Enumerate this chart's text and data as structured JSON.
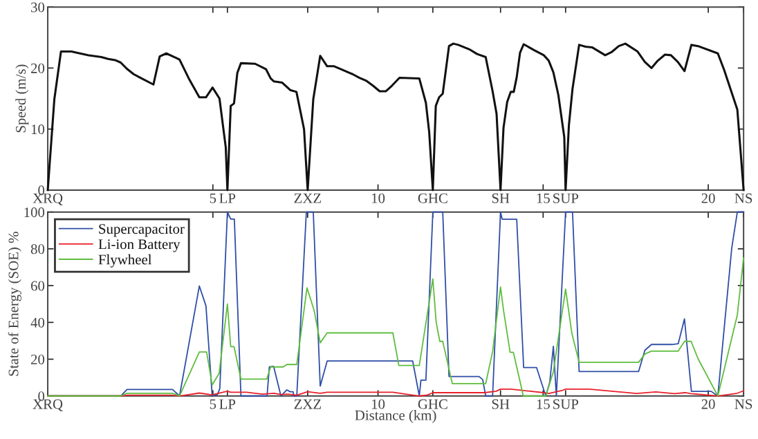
{
  "chart_data": [
    {
      "type": "line",
      "ylabel": "Speed (m/s)",
      "xlim": [
        0,
        21.07
      ],
      "ylim": [
        0,
        30
      ],
      "xticks": [
        {
          "value": 0,
          "label": "XRQ"
        },
        5,
        {
          "value": 5.44,
          "label": "LP"
        },
        {
          "value": 7.87,
          "label": "ZXZ"
        },
        10,
        {
          "value": 11.66,
          "label": "GHC"
        },
        {
          "value": 13.71,
          "label": "SH"
        },
        15,
        {
          "value": 15.68,
          "label": "SUP"
        },
        20,
        {
          "value": 21.07,
          "label": "NS"
        }
      ],
      "yticks": [
        0,
        10,
        20,
        30
      ],
      "grid": false,
      "legend": false,
      "marker": "none",
      "line_style": "solid",
      "series": [
        {
          "color": "#111111",
          "x": [
            0,
            0.2,
            0.4,
            0.72,
            0.88,
            1.24,
            1.62,
            1.83,
            2.04,
            2.21,
            2.39,
            2.6,
            2.81,
            3.2,
            3.39,
            3.59,
            3.99,
            4.27,
            4.59,
            4.79,
            4.99,
            5.2,
            5.39,
            5.44,
            5.54,
            5.64,
            5.74,
            5.85,
            6.28,
            6.61,
            6.75,
            6.85,
            7.1,
            7.34,
            7.53,
            7.76,
            7.87,
            8.04,
            8.25,
            8.46,
            8.67,
            8.88,
            9.23,
            9.44,
            9.65,
            9.85,
            10.05,
            10.24,
            10.42,
            10.65,
            11.25,
            11.45,
            11.55,
            11.66,
            11.75,
            11.85,
            11.96,
            12.15,
            12.28,
            12.43,
            12.79,
            13.0,
            13.26,
            13.47,
            13.59,
            13.71,
            13.8,
            13.91,
            14.02,
            14.11,
            14.2,
            14.3,
            14.41,
            14.74,
            15.02,
            15.17,
            15.31,
            15.46,
            15.64,
            15.68,
            15.78,
            15.89,
            16.09,
            16.28,
            16.48,
            16.88,
            17.07,
            17.29,
            17.49,
            17.86,
            18.08,
            18.28,
            18.47,
            18.69,
            18.87,
            19.08,
            19.28,
            19.49,
            19.69,
            20.29,
            20.48,
            20.88,
            21.07
          ],
          "values": [
            0,
            14.9,
            22.7,
            22.7,
            22.5,
            22.1,
            21.8,
            21.5,
            21.3,
            20.9,
            19.9,
            19.0,
            18.4,
            17.3,
            21.9,
            22.4,
            21.4,
            18.3,
            15.2,
            15.2,
            16.8,
            15.0,
            7.0,
            0,
            13.8,
            14.2,
            19.2,
            20.8,
            20.7,
            19.8,
            18.3,
            17.8,
            17.6,
            16.4,
            16.1,
            10.0,
            0,
            14.9,
            22.0,
            20.3,
            20.3,
            19.8,
            19.0,
            18.4,
            17.9,
            17.1,
            16.2,
            16.2,
            17.1,
            18.4,
            18.3,
            14.3,
            9.5,
            0,
            13.8,
            15.2,
            15.8,
            23.6,
            24.0,
            23.8,
            23.0,
            22.3,
            21.8,
            16.2,
            12.5,
            0,
            10.2,
            14.4,
            16.1,
            16.1,
            18.5,
            22.5,
            23.9,
            22.9,
            22.1,
            21.2,
            19.3,
            15.6,
            8.7,
            0,
            10.6,
            16.6,
            23.8,
            23.5,
            23.4,
            22.1,
            22.6,
            23.6,
            24.0,
            22.7,
            21.0,
            20.0,
            21.2,
            22.2,
            22.1,
            21.0,
            19.5,
            23.8,
            23.6,
            22.4,
            19.7,
            13.2,
            0
          ]
        }
      ]
    },
    {
      "type": "line",
      "xlabel": "Distance (km)",
      "ylabel": "State of Energy (SOE) %",
      "xlim": [
        0,
        21.07
      ],
      "ylim": [
        0,
        100
      ],
      "xticks": [
        {
          "value": 0,
          "label": "XRQ"
        },
        5,
        {
          "value": 5.44,
          "label": "LP"
        },
        {
          "value": 7.87,
          "label": "ZXZ"
        },
        10,
        {
          "value": 11.66,
          "label": "GHC"
        },
        {
          "value": 13.71,
          "label": "SH"
        },
        15,
        {
          "value": 15.68,
          "label": "SUP"
        },
        20,
        {
          "value": 21.07,
          "label": "NS"
        }
      ],
      "yticks": [
        0,
        20,
        40,
        60,
        80,
        100
      ],
      "grid": false,
      "legend": "top left",
      "marker": "none",
      "line_style": "solid",
      "series": [
        {
          "name": "Supercapacitor",
          "color": "#2f4ea6",
          "x": [
            0,
            2.21,
            2.4,
            3.78,
            3.99,
            4.59,
            4.79,
            4.98,
            5.14,
            5.21,
            5.44,
            5.54,
            5.65,
            5.85,
            6.64,
            6.71,
            6.84,
            7.06,
            7.24,
            7.34,
            7.43,
            7.45,
            7.54,
            7.83,
            8.04,
            8.25,
            8.46,
            11.05,
            11.25,
            11.3,
            11.45,
            11.66,
            11.96,
            12.15,
            13.06,
            13.17,
            13.26,
            13.47,
            13.71,
            13.76,
            14.2,
            14.41,
            14.8,
            15.08,
            15.2,
            15.31,
            15.4,
            15.68,
            15.89,
            16.09,
            17.89,
            18.08,
            18.28,
            18.91,
            19.09,
            19.28,
            19.49,
            20.09,
            20.29,
            20.71,
            20.88,
            21.07
          ],
          "values": [
            0,
            0,
            3.5,
            3.5,
            0,
            59.8,
            49,
            0,
            0.8,
            4.1,
            100,
            96.2,
            96.2,
            0,
            0,
            15.8,
            16.1,
            0,
            3.3,
            2.3,
            2.3,
            0,
            0,
            100,
            100,
            5.4,
            19.0,
            19.0,
            0,
            8.6,
            8.6,
            100,
            100,
            10.6,
            10.6,
            8.9,
            0,
            0,
            100,
            96.1,
            96.1,
            15.5,
            15.5,
            0,
            7.4,
            27.0,
            0,
            100,
            100,
            13.3,
            13.3,
            24.8,
            28.0,
            28.0,
            28.4,
            41.9,
            2.5,
            2.5,
            0,
            80.3,
            100,
            100
          ]
        },
        {
          "name": "Li-ion Battery",
          "color": "#e8202a",
          "x": [
            0,
            2.21,
            2.4,
            3.78,
            3.99,
            4.59,
            4.97,
            5.44,
            5.54,
            6.02,
            6.5,
            6.85,
            7.06,
            7.27,
            7.54,
            7.87,
            8.25,
            8.46,
            10.45,
            11.25,
            11.5,
            11.66,
            13.22,
            13.58,
            13.71,
            14.02,
            15.02,
            15.17,
            15.59,
            15.68,
            16.39,
            17.83,
            18.41,
            18.98,
            19.3,
            19.48,
            20.29,
            20.88,
            21.07
          ],
          "values": [
            0,
            0,
            0.4,
            0.4,
            0,
            1.6,
            0.6,
            2.6,
            2.0,
            2.0,
            1.0,
            1.5,
            0.8,
            1.0,
            0.4,
            2.3,
            1.5,
            2.0,
            2.0,
            0,
            0.5,
            1.8,
            1.8,
            2.6,
            3.7,
            3.7,
            1.8,
            1.4,
            3.1,
            3.7,
            3.7,
            1.4,
            2.2,
            1.3,
            1.8,
            1.3,
            0,
            1.5,
            2.8
          ]
        },
        {
          "name": "Flywheel",
          "color": "#5ebd3e",
          "x": [
            0,
            2.21,
            2.4,
            3.78,
            3.99,
            4.59,
            4.81,
            4.98,
            5.19,
            5.44,
            5.54,
            5.64,
            5.85,
            6.63,
            6.75,
            7.13,
            7.24,
            7.54,
            7.85,
            8.07,
            8.25,
            8.46,
            10.45,
            10.63,
            11.25,
            11.66,
            11.76,
            11.87,
            11.96,
            12.25,
            13.26,
            13.47,
            13.71,
            13.8,
            14.0,
            14.1,
            14.4,
            15.08,
            15.31,
            15.68,
            15.87,
            16.09,
            17.89,
            18.08,
            18.28,
            19.09,
            19.28,
            19.48,
            19.69,
            20.29,
            20.88,
            21.07
          ],
          "values": [
            0,
            0,
            1.5,
            1.5,
            0,
            23.9,
            23.9,
            6.0,
            12.3,
            50,
            26.8,
            26.8,
            9.2,
            9.2,
            15.8,
            15.8,
            17.1,
            17.1,
            58.8,
            46.2,
            28.9,
            34.3,
            34.3,
            16.6,
            16.6,
            63.7,
            40.3,
            29.7,
            29.7,
            6.7,
            6.7,
            24.1,
            59.2,
            46.7,
            23.7,
            23.7,
            0,
            0,
            13.2,
            58.1,
            34.1,
            18.3,
            18.3,
            22.8,
            24.4,
            24.4,
            29.7,
            29.7,
            20.3,
            0,
            44.1,
            75.1
          ]
        }
      ]
    }
  ]
}
